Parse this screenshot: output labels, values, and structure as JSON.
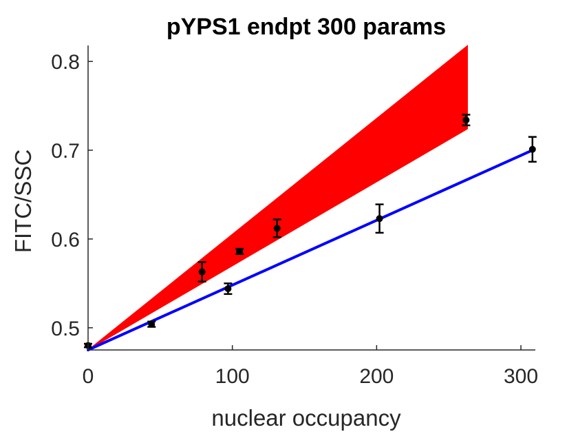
{
  "chart_data": {
    "type": "scatter",
    "title": "pYPS1 endpt 300 params",
    "xlabel": "nuclear occupancy",
    "ylabel": "FITC/SSC",
    "xlim": [
      0,
      310
    ],
    "ylim": [
      0.475,
      0.818
    ],
    "xticks": [
      0,
      100,
      200,
      300
    ],
    "yticks": [
      0.5,
      0.6,
      0.7,
      0.8
    ],
    "xtick_labels": [
      "0",
      "100",
      "200",
      "300"
    ],
    "ytick_labels": [
      "0.5",
      "0.6",
      "0.7",
      "0.8"
    ],
    "grid": false,
    "legend": "none",
    "series": [
      {
        "kind": "points_with_errorbars",
        "color": "#000000",
        "points": [
          {
            "x": 0,
            "y": 0.48,
            "err": 0.002
          },
          {
            "x": 44,
            "y": 0.504,
            "err": 0.003
          },
          {
            "x": 79,
            "y": 0.563,
            "err": 0.011
          },
          {
            "x": 97,
            "y": 0.544,
            "err": 0.006
          },
          {
            "x": 105,
            "y": 0.586,
            "err": 0.003
          },
          {
            "x": 131,
            "y": 0.612,
            "err": 0.01
          },
          {
            "x": 202,
            "y": 0.623,
            "err": 0.016
          },
          {
            "x": 262,
            "y": 0.734,
            "err": 0.006
          },
          {
            "x": 308,
            "y": 0.701,
            "err": 0.014
          }
        ]
      },
      {
        "kind": "line",
        "color": "#0000ff",
        "x": [
          0,
          308
        ],
        "y": [
          0.475,
          0.7
        ]
      },
      {
        "kind": "band",
        "color": "#ff0000",
        "x_start": 0,
        "y_start": 0.475,
        "x_end": 263,
        "y_end_low": 0.724,
        "y_end_high": 0.818
      }
    ]
  }
}
